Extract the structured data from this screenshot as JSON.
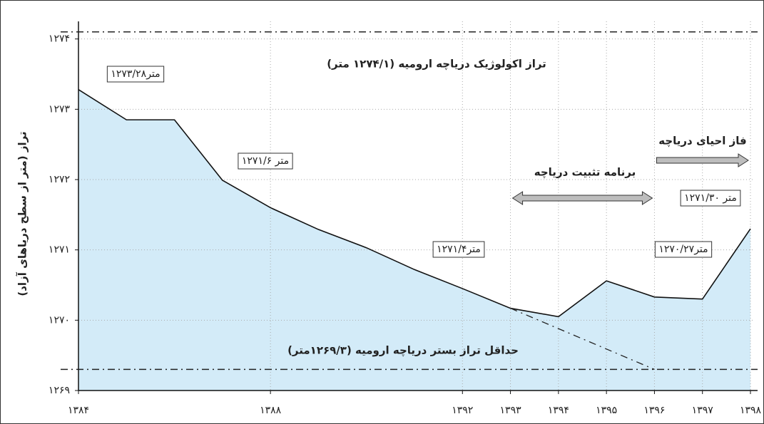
{
  "chart_data": {
    "type": "area",
    "y_label": "تراز (متر از سطح دریاهای آزاد)",
    "x": [
      1384,
      1385,
      1386,
      1387,
      1388,
      1389,
      1390,
      1391,
      1392,
      1393,
      1394,
      1395,
      1396,
      1397,
      1398
    ],
    "series": [
      {
        "color": "#d3ebf8",
        "values": [
          1273.28,
          1272.85,
          1272.85,
          1271.99,
          1271.6,
          1271.29,
          1271.03,
          1270.72,
          1270.45,
          1270.17,
          1270.05,
          1270.56,
          1270.33,
          1270.3,
          1271.3
        ]
      }
    ],
    "xlim": [
      1384,
      1398
    ],
    "xticks": [
      {
        "value": 1384,
        "label": "۱۳۸۴"
      },
      {
        "value": 1388,
        "label": "۱۳۸۸"
      },
      {
        "value": 1392,
        "label": "۱۳۹۲"
      },
      {
        "value": 1393,
        "label": "۱۳۹۳"
      },
      {
        "value": 1394,
        "label": "۱۳۹۴"
      },
      {
        "value": 1395,
        "label": "۱۳۹۵"
      },
      {
        "value": 1396,
        "label": "۱۳۹۶"
      },
      {
        "value": 1397,
        "label": "۱۳۹۷"
      },
      {
        "value": 1398,
        "label": "۱۳۹۸"
      }
    ],
    "ylim": [
      1269,
      1274.25
    ],
    "yticks": [
      {
        "value": 1269,
        "label": "۱۲۶۹"
      },
      {
        "value": 1270,
        "label": "۱۲۷۰"
      },
      {
        "value": 1271,
        "label": "۱۲۷۱"
      },
      {
        "value": 1272,
        "label": "۱۲۷۲"
      },
      {
        "value": 1273,
        "label": "۱۲۷۳"
      },
      {
        "value": 1274,
        "label": "۱۲۷۴"
      }
    ],
    "grid": true,
    "reference_lines": [
      {
        "value": 1274.1,
        "label": "تراز اکولوژیک دریاچه ارومیه (۱۲۷۴/۱ متر)"
      },
      {
        "value": 1269.3,
        "label": "حداقل تراز بستر دریاچه ارومیه (۱۲۶۹/۳متر)"
      }
    ],
    "projection": {
      "x": [
        1393,
        1396
      ],
      "values": [
        1270.17,
        1269.3
      ]
    },
    "phases": [
      {
        "label": "برنامه تثبیت دریاچه",
        "from": 1393,
        "to": 1396
      },
      {
        "label": "فاز احیای دریاچه",
        "from": 1396,
        "to": 1398
      }
    ],
    "annotations": [
      "۱۲۷۳/۲۸متر",
      "۱۲۷۱/۶ متر",
      "۱۲۷۱/۴متر",
      "۱۲۷۰/۲۷متر",
      "۱۲۷۱/۳۰ متر"
    ]
  }
}
